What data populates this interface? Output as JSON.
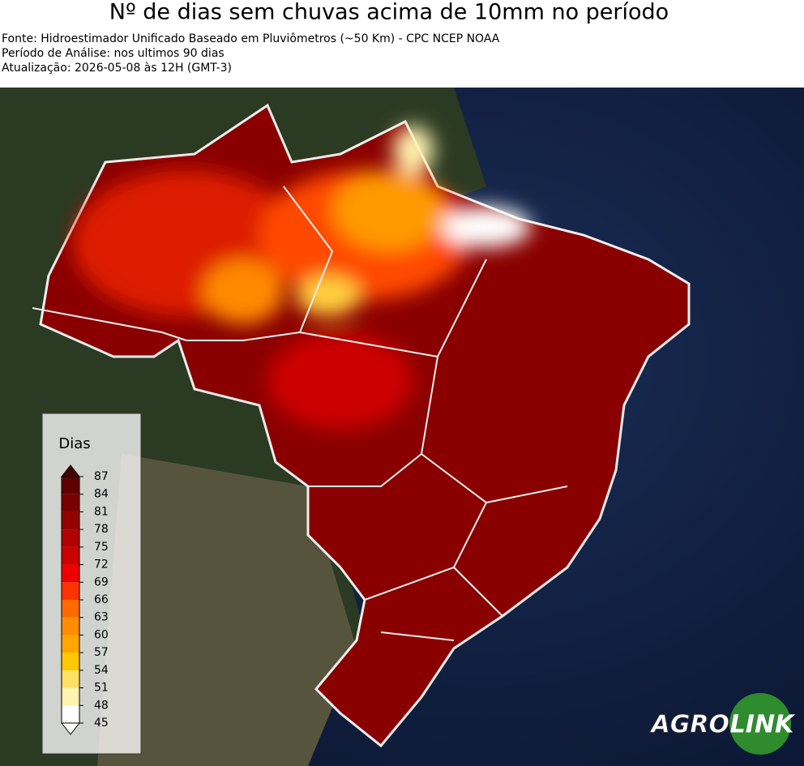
{
  "header": {
    "title": "Nº de dias sem chuvas acima de 10mm no período",
    "source": "Fonte: Hidroestimador Unificado Baseado em Pluviômetros (~50 Km) - CPC NCEP NOAA",
    "period": "Período de Análise: nos ultimos 90 dias",
    "updated": "Atualização: 2026-05-08 às 12H (GMT-3)"
  },
  "colorbar": {
    "title": "Dias",
    "ticks": [
      45,
      48,
      51,
      54,
      57,
      60,
      63,
      66,
      69,
      72,
      75,
      78,
      81,
      84,
      87
    ],
    "colors": [
      "#ffffff",
      "#fff3b0",
      "#ffe066",
      "#ffc800",
      "#ffa500",
      "#ff8c00",
      "#ff6a00",
      "#ff3300",
      "#ee0000",
      "#cc0000",
      "#b00000",
      "#950000",
      "#7a0000",
      "#600000"
    ]
  },
  "logo": {
    "left": "AGRO",
    "right": "LINK"
  }
}
